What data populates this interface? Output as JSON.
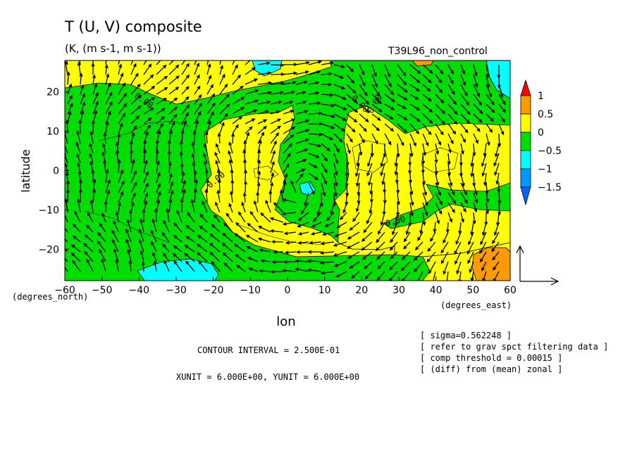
{
  "chart_data": {
    "type": "heatmap",
    "title": "T (U, V) composite",
    "subtitle": "(K, (m s-1, m s-1))",
    "run_label": "T39L96_non_control",
    "xlabel": "lon",
    "ylabel": "latitude",
    "x_unit_label": "(degrees_east)",
    "y_unit_label": "(degrees_north)",
    "xlim": [
      -60,
      60
    ],
    "ylim": [
      -28,
      28
    ],
    "x_ticks": [
      -60,
      -50,
      -40,
      -30,
      -20,
      -10,
      0,
      10,
      20,
      30,
      40,
      50,
      60
    ],
    "y_ticks": [
      -20,
      -10,
      0,
      10,
      20
    ],
    "grid": false,
    "colorbar": {
      "levels": [
        1,
        0.5,
        0,
        -0.5,
        -1,
        -1.5
      ],
      "labels": [
        "1",
        "0.5",
        "0",
        "−0.5",
        "−1",
        "−1.5"
      ],
      "colors": [
        "#ff9a00",
        "#ffff00",
        "#00dd00",
        "#00ffff",
        "#0099ff"
      ],
      "over_color": "#ff0000",
      "under_color": "#0066ff",
      "placement": "right"
    },
    "contour_labels": [
      "0.00",
      "0.00",
      "0.00",
      "0.00",
      "0.00"
    ],
    "notes": [
      "[ sigma=0.562248 ]",
      "[ refer to grav spct filtering data ]",
      "[ comp threshold = 0.00015 ]",
      "[ (diff) from (mean) zonal ]"
    ],
    "contour_interval": "CONTOUR INTERVAL = 2.500E-01",
    "vector_units": "XUNIT = 6.000E+00, YUNIT = 6.000E+00"
  }
}
